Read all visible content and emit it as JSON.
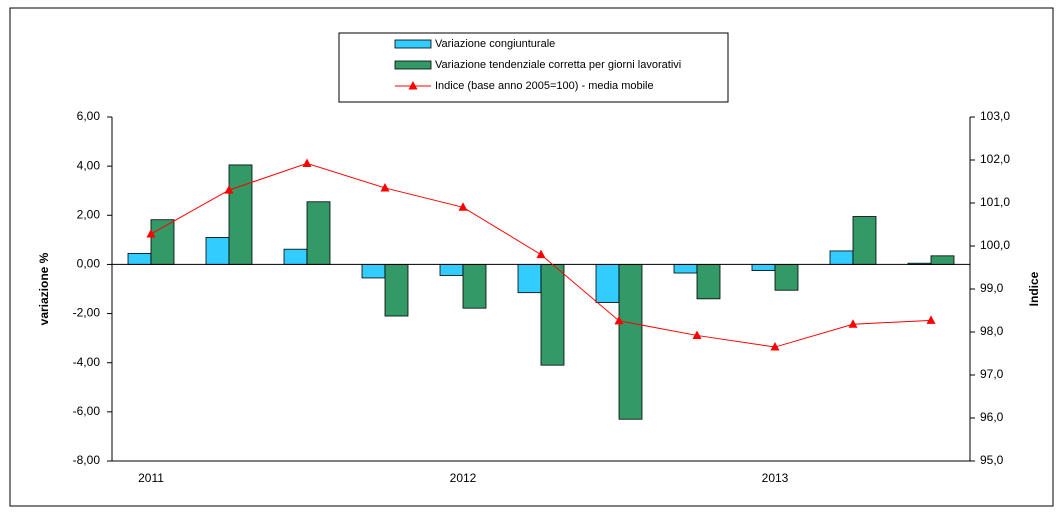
{
  "chart_data": {
    "type": "bar",
    "categories": [
      "2011",
      null,
      null,
      null,
      "2012",
      null,
      null,
      null,
      "2013",
      null,
      null
    ],
    "y_label": "variazione %",
    "y2_label": "Indice",
    "ylim": [
      -8,
      6
    ],
    "yticks": [
      {
        "value": -8,
        "label": "-8,00"
      },
      {
        "value": -6,
        "label": "-6,00"
      },
      {
        "value": -4,
        "label": "-4,00"
      },
      {
        "value": -2,
        "label": "-2,00"
      },
      {
        "value": 0,
        "label": "0,00"
      },
      {
        "value": 2,
        "label": "2,00"
      },
      {
        "value": 4,
        "label": "4,00"
      },
      {
        "value": 6,
        "label": "6,00"
      }
    ],
    "y2lim": [
      95,
      103
    ],
    "y2ticks": [
      {
        "value": 95,
        "label": "95,0"
      },
      {
        "value": 96,
        "label": "96,0"
      },
      {
        "value": 97,
        "label": "97,0"
      },
      {
        "value": 98,
        "label": "98,0"
      },
      {
        "value": 99,
        "label": "99,0"
      },
      {
        "value": 100,
        "label": "100,0"
      },
      {
        "value": 101,
        "label": "101,0"
      },
      {
        "value": 102,
        "label": "102,0"
      },
      {
        "value": 103,
        "label": "103,0"
      }
    ],
    "series": [
      {
        "name": "Variazione congiunturale",
        "type": "bar",
        "color": "#33ccff",
        "values": [
          0.45,
          1.1,
          0.62,
          -0.55,
          -0.45,
          -1.15,
          -1.55,
          -0.35,
          -0.25,
          0.55,
          0.05
        ]
      },
      {
        "name": "Variazione tendenziale corretta per giorni lavorativi",
        "type": "bar",
        "color": "#339966",
        "values": [
          1.82,
          4.05,
          2.55,
          -2.1,
          -1.78,
          -4.1,
          -6.3,
          -1.4,
          -1.05,
          1.95,
          0.35
        ]
      },
      {
        "name": "Indice (base anno 2005=100) - media mobile",
        "type": "line",
        "axis": "y2",
        "color": "#ff0000",
        "values": [
          100.28,
          101.3,
          101.92,
          101.35,
          100.9,
          99.8,
          98.26,
          97.92,
          97.65,
          98.18,
          98.27
        ]
      }
    ]
  }
}
